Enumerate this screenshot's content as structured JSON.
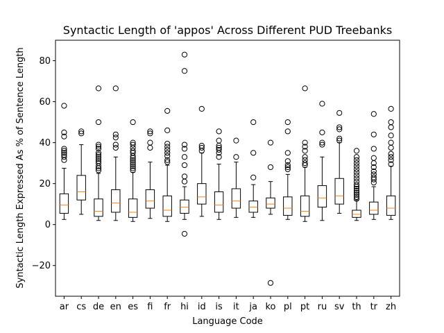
{
  "chart_data": {
    "type": "boxplot",
    "title": "Syntactic Length of 'appos' Across Different PUD Treebanks",
    "xlabel": "Language Code",
    "ylabel": "Syntactic Length Expressed As % of Sentence Length",
    "ylim": [
      -35,
      90
    ],
    "yticks": [
      -20,
      0,
      20,
      40,
      60,
      80
    ],
    "grid": false,
    "colors": {
      "box": "#000000",
      "median": "#ff7f0e",
      "flier": "#000000"
    },
    "categories": [
      "ar",
      "cs",
      "de",
      "en",
      "es",
      "fi",
      "fr",
      "hi",
      "id",
      "is",
      "it",
      "ja",
      "ko",
      "pl",
      "pt",
      "ru",
      "sv",
      "th",
      "tr",
      "zh"
    ],
    "series": [
      {
        "label": "ar",
        "whislo": 2.5,
        "q1": 5.5,
        "med": 9.5,
        "q3": 15,
        "whishi": 27.5,
        "fliers": [
          31.5,
          33,
          34,
          35,
          36,
          37,
          43,
          45,
          58
        ]
      },
      {
        "label": "cs",
        "whislo": 5,
        "q1": 12,
        "med": 16,
        "q3": 24,
        "whishi": 39,
        "fliers": [
          44.5,
          45.5
        ]
      },
      {
        "label": "de",
        "whislo": 2,
        "q1": 4,
        "med": 6.5,
        "q3": 12.5,
        "whishi": 25,
        "fliers": [
          26.5,
          27.5,
          28.5,
          30,
          31,
          32,
          33,
          34,
          35,
          37,
          38,
          39,
          50,
          66.5
        ]
      },
      {
        "label": "en",
        "whislo": 2,
        "q1": 6,
        "med": 10.5,
        "q3": 17,
        "whishi": 33,
        "fliers": [
          37.5,
          39,
          42.5,
          44,
          66.5
        ]
      },
      {
        "label": "es",
        "whislo": 1.5,
        "q1": 3.5,
        "med": 6,
        "q3": 12.5,
        "whishi": 25.5,
        "fliers": [
          26.5,
          27.5,
          28.5,
          29.5,
          30.5,
          31.5,
          32.5,
          33.5,
          35,
          36,
          37.5,
          39,
          40,
          50
        ]
      },
      {
        "label": "fi",
        "whislo": 3,
        "q1": 8,
        "med": 11.5,
        "q3": 17,
        "whishi": 30.5,
        "fliers": [
          37.5,
          40,
          44.5,
          45.5
        ]
      },
      {
        "label": "fr",
        "whislo": 1.5,
        "q1": 4,
        "med": 7,
        "q3": 14,
        "whishi": 29,
        "fliers": [
          30.5,
          31.5,
          33.5,
          35,
          36.5,
          38,
          39.5,
          46,
          55.5
        ]
      },
      {
        "label": "hi",
        "whislo": 2.5,
        "q1": 5.5,
        "med": 8.5,
        "q3": 12,
        "whishi": 18.5,
        "fliers": [
          -4.5,
          21,
          23.5,
          29,
          33,
          37,
          39,
          75,
          83
        ]
      },
      {
        "label": "id",
        "whislo": 4,
        "q1": 10,
        "med": 13.5,
        "q3": 20,
        "whishi": 35,
        "fliers": [
          36,
          37.5,
          38.5,
          56.5
        ]
      },
      {
        "label": "is",
        "whislo": 2.5,
        "q1": 6,
        "med": 9.5,
        "q3": 16,
        "whishi": 29.5,
        "fliers": [
          33,
          35,
          36.5,
          37.5,
          38.5,
          41,
          45.5
        ]
      },
      {
        "label": "it",
        "whislo": 3.5,
        "q1": 8,
        "med": 11.5,
        "q3": 17.5,
        "whishi": 30.5,
        "fliers": [
          33,
          41
        ]
      },
      {
        "label": "ja",
        "whislo": 3.5,
        "q1": 6,
        "med": 8.5,
        "q3": 11.5,
        "whishi": 19.5,
        "fliers": [
          23,
          35,
          50
        ]
      },
      {
        "label": "ko",
        "whislo": 5,
        "q1": 8,
        "med": 10,
        "q3": 13,
        "whishi": 21,
        "fliers": [
          -28.5,
          28,
          40
        ]
      },
      {
        "label": "pl",
        "whislo": 2.5,
        "q1": 4.5,
        "med": 8,
        "q3": 13.5,
        "whishi": 24.5,
        "fliers": [
          27,
          28,
          29,
          31,
          35,
          45.5,
          50
        ]
      },
      {
        "label": "pt",
        "whislo": 1.5,
        "q1": 4,
        "med": 6.5,
        "q3": 14,
        "whishi": 28,
        "fliers": [
          29,
          30,
          31.5,
          33,
          36,
          38,
          40,
          66.5
        ]
      },
      {
        "label": "ru",
        "whislo": 2,
        "q1": 8.5,
        "med": 13,
        "q3": 19,
        "whishi": 33,
        "fliers": [
          39,
          40,
          45,
          59
        ]
      },
      {
        "label": "sv",
        "whislo": 5.5,
        "q1": 10,
        "med": 14,
        "q3": 22.5,
        "whishi": 40,
        "fliers": [
          41,
          42,
          46.5,
          47.5,
          54.5
        ]
      },
      {
        "label": "th",
        "whislo": 2,
        "q1": 3.5,
        "med": 5,
        "q3": 7,
        "whishi": 12,
        "fliers": [
          12.5,
          13.5,
          14.5,
          15.5,
          16.5,
          17.5,
          18.5,
          19.5,
          21,
          22.5,
          24,
          25.5,
          27,
          28.5,
          30,
          31.5,
          33,
          36
        ]
      },
      {
        "label": "tr",
        "whislo": 2.5,
        "q1": 5,
        "med": 7,
        "q3": 11,
        "whishi": 18.5,
        "fliers": [
          20.5,
          22,
          23,
          24.5,
          26,
          28,
          30,
          32.5,
          37,
          44,
          54
        ]
      },
      {
        "label": "zh",
        "whislo": 2.5,
        "q1": 4.5,
        "med": 8,
        "q3": 14,
        "whishi": 28.5,
        "fliers": [
          29.5,
          31.5,
          33,
          34.5,
          37.5,
          40,
          43.5,
          47.5,
          50,
          56.5
        ]
      }
    ]
  }
}
